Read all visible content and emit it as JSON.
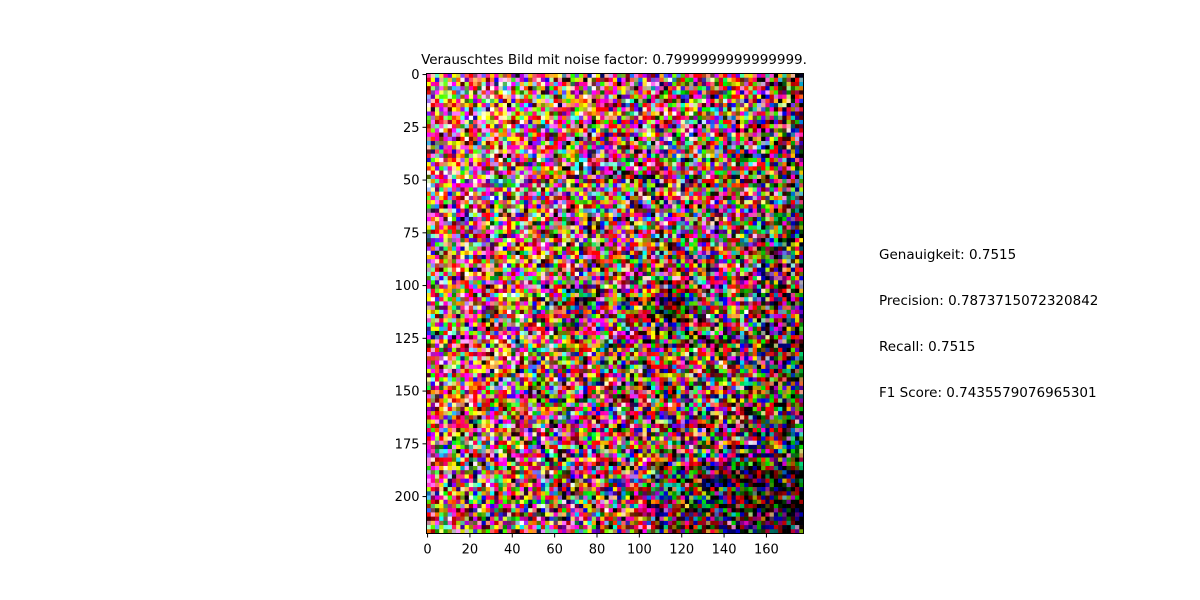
{
  "chart_data": {
    "type": "heatmap",
    "image_kind": "noisy RGB photograph of a face",
    "title": "Verauschtes Bild mit noise factor: 0.7999999999999999.",
    "xlabel": "",
    "ylabel": "",
    "xlim": [
      -0.5,
      177.5
    ],
    "ylim": [
      217.5,
      -0.5
    ],
    "xticks": [
      0,
      20,
      40,
      60,
      80,
      100,
      120,
      140,
      160
    ],
    "yticks": [
      0,
      25,
      50,
      75,
      100,
      125,
      150,
      175,
      200
    ],
    "image_size": {
      "width": 178,
      "height": 218
    },
    "grid": false,
    "noise_factor": 0.7999999999999999
  },
  "metrics": {
    "accuracy": "Genauigkeit: 0.7515",
    "precision": "Precision: 0.7873715072320842",
    "recall": "Recall: 0.7515",
    "f1": "F1 Score: 0.7435579076965301"
  }
}
